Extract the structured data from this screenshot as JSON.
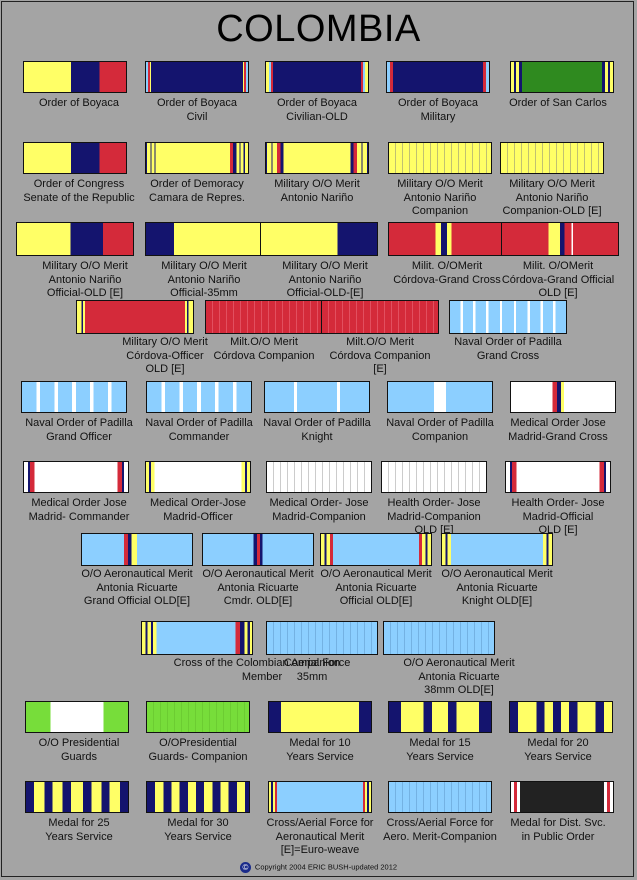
{
  "title": "COLOMBIA",
  "footer": "Copyright 2004  ERIC BUSH-updated 2012",
  "copyright_symbol": "©",
  "colors": {
    "background": "#a4a4a4",
    "yellow": "#ffff66",
    "navy": "#14146e",
    "red": "#d42a3a",
    "green": "#2f8a1f",
    "light_green": "#77dd3a",
    "light_blue": "#8ccfff",
    "white": "#ffffff",
    "black": "#222222"
  },
  "ribbons": [
    {
      "label": "Order of Boyaca",
      "type": "boyaca"
    },
    {
      "label": "Order of Boyaca\nCivil",
      "type": "boyaca-civil"
    },
    {
      "label": "Order of Boyaca\nCivilian-OLD",
      "type": "boyaca-civil-old"
    },
    {
      "label": "Order of Boyaca\nMilitary",
      "type": "boyaca-military"
    },
    {
      "label": "Order of San Carlos",
      "type": "san-carlos"
    },
    {
      "label": "Order of Congress\nSenate of the Republic",
      "type": "congress"
    },
    {
      "label": "Order of Demoracy\nCamara de Repres.",
      "type": "democracy"
    },
    {
      "label": "Military O/O Merit\nAntonio Nariño",
      "type": "narino"
    },
    {
      "label": "Military O/O Merit\nAntonio Nariño\nCompanion",
      "type": "yellow-plain"
    },
    {
      "label": "Military O/O Merit\nAntonio Nariño\nCompanion-OLD [E]",
      "type": "yellow-plain"
    },
    {
      "label": "Military O/O Merit\nAntonio Nariño\nOfficial-OLD [E]",
      "type": "boyaca"
    },
    {
      "label": "Military O/O Merit\nAntonio Nariño\nOfficial-35mm",
      "type": "narino-35"
    },
    {
      "label": "Military O/O Merit\nAntonio Nariño\nOfficial-OLD-[E]",
      "type": "narino-old"
    },
    {
      "label": "Milit. O/OMerit\nCórdova-Grand Cross",
      "type": "cordova-gc"
    },
    {
      "label": "Milit. O/OMerit\nCórdova-Grand Official\nOLD [E]",
      "type": "cordova-go"
    },
    {
      "label": "Military O/O Merit\nCórdova-Officer\nOLD [E]",
      "type": "cordova-officer"
    },
    {
      "label": "Milt.O/O Merit\nCórdova Companion",
      "type": "red-plain"
    },
    {
      "label": "Milt.O/O Merit\nCórdova Companion\n[E]",
      "type": "red-plain"
    },
    {
      "label": "Naval Order of Padilla\nGrand Cross",
      "type": "padilla-gc"
    },
    {
      "label": "Naval Order of Padilla\nGrand Officer",
      "type": "padilla-go"
    },
    {
      "label": "Naval Order of Padilla\nCommander",
      "type": "padilla-go"
    },
    {
      "label": "Naval Order of Padilla\nKnight",
      "type": "padilla-knight"
    },
    {
      "label": "Naval Order of Padilla\nCompanion",
      "type": "padilla-companion"
    },
    {
      "label": "Medical Order  Jose\nMadrid-Grand Cross",
      "type": "medical-gc"
    },
    {
      "label": "Medical Order Jose\nMadrid- Commander",
      "type": "medical-cmdr"
    },
    {
      "label": "Medical Order-Jose\nMadrid-Officer",
      "type": "medical-officer"
    },
    {
      "label": "Medical Order- Jose\nMadrid-Companion",
      "type": "medical-companion"
    },
    {
      "label": "Health Order- Jose\nMadrid-Companion\nOLD [E]",
      "type": "medical-companion"
    },
    {
      "label": "Health Order- Jose\nMadrid-Official\nOLD [E]",
      "type": "medical-cmdr"
    },
    {
      "label": "O/O Aeronautical Merit\nAntonia Ricuarte\nGrand Official OLD[E]",
      "type": "aero-go"
    },
    {
      "label": "O/O Aeronautical Merit\nAntonia Ricuarte\nCmdr. OLD[E]",
      "type": "aero-cmdr"
    },
    {
      "label": "O/O Aeronautical Merit\nAntonia Ricuarte\nOfficial OLD[E]",
      "type": "aero-official"
    },
    {
      "label": "O/O Aeronautical Merit\nAntonia Ricuarte\nKnight OLD[E]",
      "type": "aero-knight"
    },
    {
      "label": "Cross of the Colombian Aerial  Force\nMember",
      "type": "aerial-cross"
    },
    {
      "label": "Companion\n35mm",
      "type": "blue-plain"
    },
    {
      "label": "O/O Aeronautical Merit\nAntonia Ricuarte\n38mm OLD[E]",
      "type": "blue-plain"
    },
    {
      "label": "O/O Presidential\nGuards",
      "type": "pres-guards"
    },
    {
      "label": "O/OPresidential\nGuards- Companion",
      "type": "green-plain"
    },
    {
      "label": "Medal for 10\nYears  Service",
      "type": "years-10"
    },
    {
      "label": "Medal for 15\nYears  Service",
      "type": "years-15"
    },
    {
      "label": "Medal for 20\nYears  Service",
      "type": "years-20"
    },
    {
      "label": "Medal for 25\nYears  Service",
      "type": "years-25"
    },
    {
      "label": "Medal for 30\nYears  Service",
      "type": "years-30"
    },
    {
      "label": "Cross/Aerial Force for\nAeronautical Merit\n[E]=Euro-weave",
      "type": "aerial-merit"
    },
    {
      "label": "Cross/Aerial Force for\nAero. Merit-Companion",
      "type": "blue-plain"
    },
    {
      "label": "Medal for Dist. Svc.\nin Public Order",
      "type": "dist-svc"
    }
  ]
}
